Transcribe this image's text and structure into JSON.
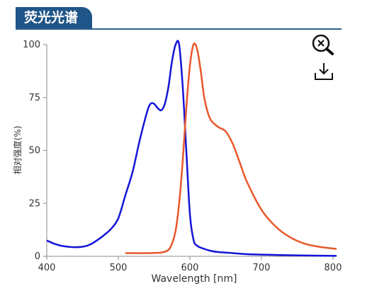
{
  "header": {
    "title": "荧光光谱"
  },
  "toolbar": {
    "zoom_icon": "zoom-reset-icon",
    "download_icon": "download-icon"
  },
  "colors": {
    "excitation": "#1414d8",
    "emission": "#e8582a",
    "tab": "#1f5588",
    "axis": "#8a8a8a"
  },
  "chart_data": {
    "type": "line",
    "xlabel": "Wavelength [nm]",
    "ylabel": "相对强度(%)",
    "xlim": [
      400,
      805
    ],
    "ylim": [
      0,
      100
    ],
    "xticks": [
      400,
      500,
      600,
      700,
      800
    ],
    "yticks": [
      0,
      25,
      50,
      75,
      100
    ],
    "grid": false,
    "series": [
      {
        "x": [
          400,
          410,
          420,
          430,
          440,
          450,
          460,
          470,
          480,
          490,
          500,
          510,
          520,
          530,
          540,
          545,
          550,
          555,
          560,
          565,
          570,
          575,
          580,
          585,
          590,
          595,
          600,
          605,
          610,
          620,
          630,
          640,
          660,
          680,
          700,
          740,
          780,
          805
        ],
        "y": [
          7.5,
          6,
          5,
          4.5,
          4.3,
          4.5,
          5.5,
          7.5,
          10,
          13,
          18,
          29,
          40,
          55,
          68,
          72,
          72,
          70,
          69,
          72,
          80,
          92,
          100,
          100,
          80,
          50,
          20,
          8,
          5,
          3.5,
          2.5,
          2,
          1.5,
          1,
          0.8,
          0.5,
          0.3,
          0.2
        ]
      },
      {
        "x": [
          510,
          520,
          540,
          560,
          570,
          575,
          580,
          585,
          590,
          595,
          600,
          605,
          610,
          615,
          620,
          625,
          630,
          640,
          650,
          660,
          670,
          680,
          700,
          720,
          740,
          760,
          780,
          805
        ],
        "y": [
          1.5,
          1.5,
          1.5,
          1.8,
          3,
          6,
          12,
          25,
          45,
          70,
          90,
          100,
          98,
          88,
          75,
          68,
          64,
          61,
          59,
          53,
          44,
          35,
          22,
          14,
          9,
          6,
          4.5,
          3.5
        ]
      }
    ]
  }
}
